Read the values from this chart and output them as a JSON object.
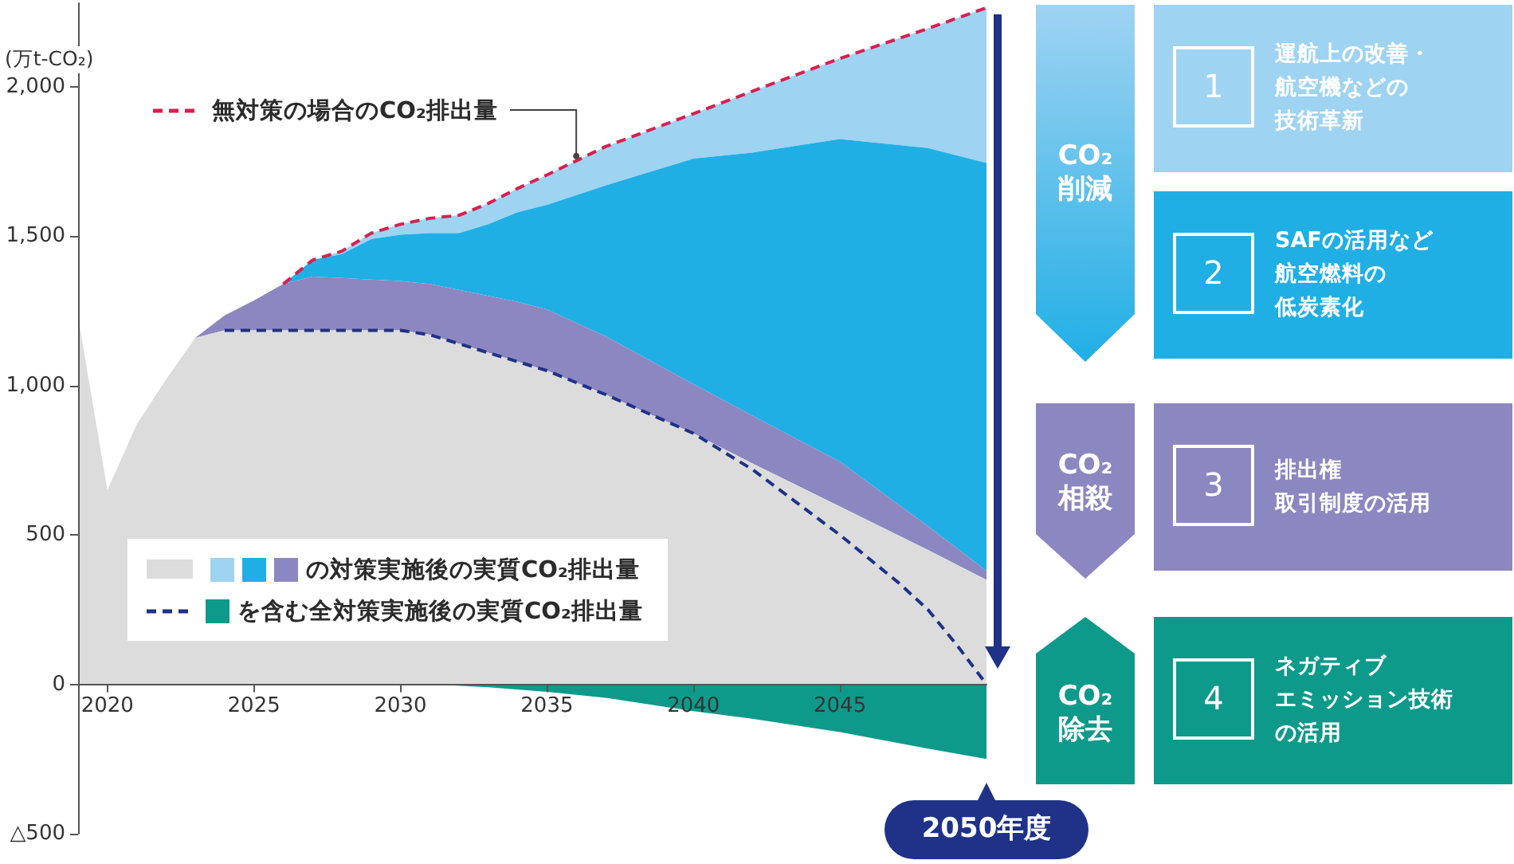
{
  "chart_data": {
    "type": "area",
    "ylabel": "(万t-CO₂)",
    "x": [
      2019,
      2020,
      2021,
      2022,
      2023,
      2024,
      2025,
      2026,
      2027,
      2028,
      2029,
      2030,
      2031,
      2032,
      2033,
      2034,
      2035,
      2037,
      2040,
      2042,
      2045,
      2048,
      2050
    ],
    "series": [
      {
        "color": "#9fd3f2",
        "values": [
          null,
          null,
          null,
          null,
          null,
          null,
          null,
          null,
          1420,
          1450,
          1510,
          1540,
          1560,
          1570,
          1610,
          1660,
          1705,
          1800,
          1910,
          1985,
          2095,
          2195,
          2265
        ]
      },
      {
        "color": "#20afe5",
        "values": [
          null,
          null,
          null,
          null,
          null,
          null,
          null,
          1340,
          1420,
          1440,
          1490,
          1505,
          1510,
          1510,
          1540,
          1580,
          1605,
          1670,
          1760,
          1780,
          1825,
          1795,
          1745
        ]
      },
      {
        "color": "#8c87c0",
        "values": [
          null,
          null,
          null,
          null,
          1160,
          1235,
          1285,
          1340,
          1365,
          1360,
          1355,
          1350,
          1340,
          1320,
          1300,
          1280,
          1255,
          1165,
          1005,
          900,
          745,
          530,
          380
        ]
      },
      {
        "color": "#dcdcdc",
        "values": [
          1230,
          650,
          870,
          1020,
          1160,
          1185,
          1185,
          1185,
          1185,
          1185,
          1185,
          1185,
          1170,
          1140,
          1110,
          1080,
          1050,
          970,
          840,
          740,
          595,
          450,
          350
        ]
      },
      {
        "color": "#0e9a8b",
        "x": [
          2031,
          2033,
          2035,
          2037,
          2040,
          2042,
          2045,
          2048,
          2050
        ],
        "values": [
          0,
          -10,
          -25,
          -45,
          -90,
          -115,
          -160,
          -215,
          -250
        ]
      },
      {
        "type": "line",
        "color": "#1f3288",
        "x": [
          2024,
          2026,
          2028,
          2030,
          2031,
          2032,
          2033,
          2034,
          2035,
          2037,
          2040,
          2042,
          2045,
          2047,
          2048,
          2049,
          2050
        ],
        "values": [
          1185,
          1185,
          1185,
          1185,
          1170,
          1140,
          1110,
          1080,
          1050,
          970,
          840,
          720,
          500,
          340,
          250,
          130,
          0
        ]
      },
      {
        "type": "line",
        "name": "無対策の場合のCO₂排出量",
        "color": "#d7204f",
        "x": [
          2026,
          2027,
          2028,
          2029,
          2030,
          2031,
          2032,
          2033,
          2034,
          2035,
          2037,
          2040,
          2042,
          2045,
          2048,
          2050
        ],
        "values": [
          1340,
          1420,
          1450,
          1510,
          1540,
          1560,
          1570,
          1610,
          1660,
          1705,
          1800,
          1910,
          1985,
          2095,
          2195,
          2265
        ]
      }
    ],
    "line_style": "dashed",
    "legend": "top left",
    "xlim": [
      2019,
      2050
    ],
    "xticks": [
      2020,
      2025,
      2030,
      2035,
      2040,
      2045
    ],
    "ylim": [
      -500,
      2280
    ],
    "yticks": [
      {
        "value": -500,
        "label": "△500"
      },
      0,
      500,
      {
        "value": 1000,
        "label": "1,000"
      },
      {
        "value": 1500,
        "label": "1,500"
      },
      {
        "value": 2000,
        "label": "2,000"
      }
    ],
    "annotations": [
      "の対策実施後の実質CO₂排出量",
      "を含む全対策実施後の実質CO₂排出量",
      "CO₂削減",
      "CO₂相殺",
      "CO₂除去",
      "1",
      "2",
      "3",
      "4",
      "運航上の改善・航空機などの技術革新",
      "SAFの活用など航空燃料の低炭素化",
      "排出権取引制度の活用",
      "ネガティブエミッション技術の活用",
      "2050年度"
    ]
  }
}
